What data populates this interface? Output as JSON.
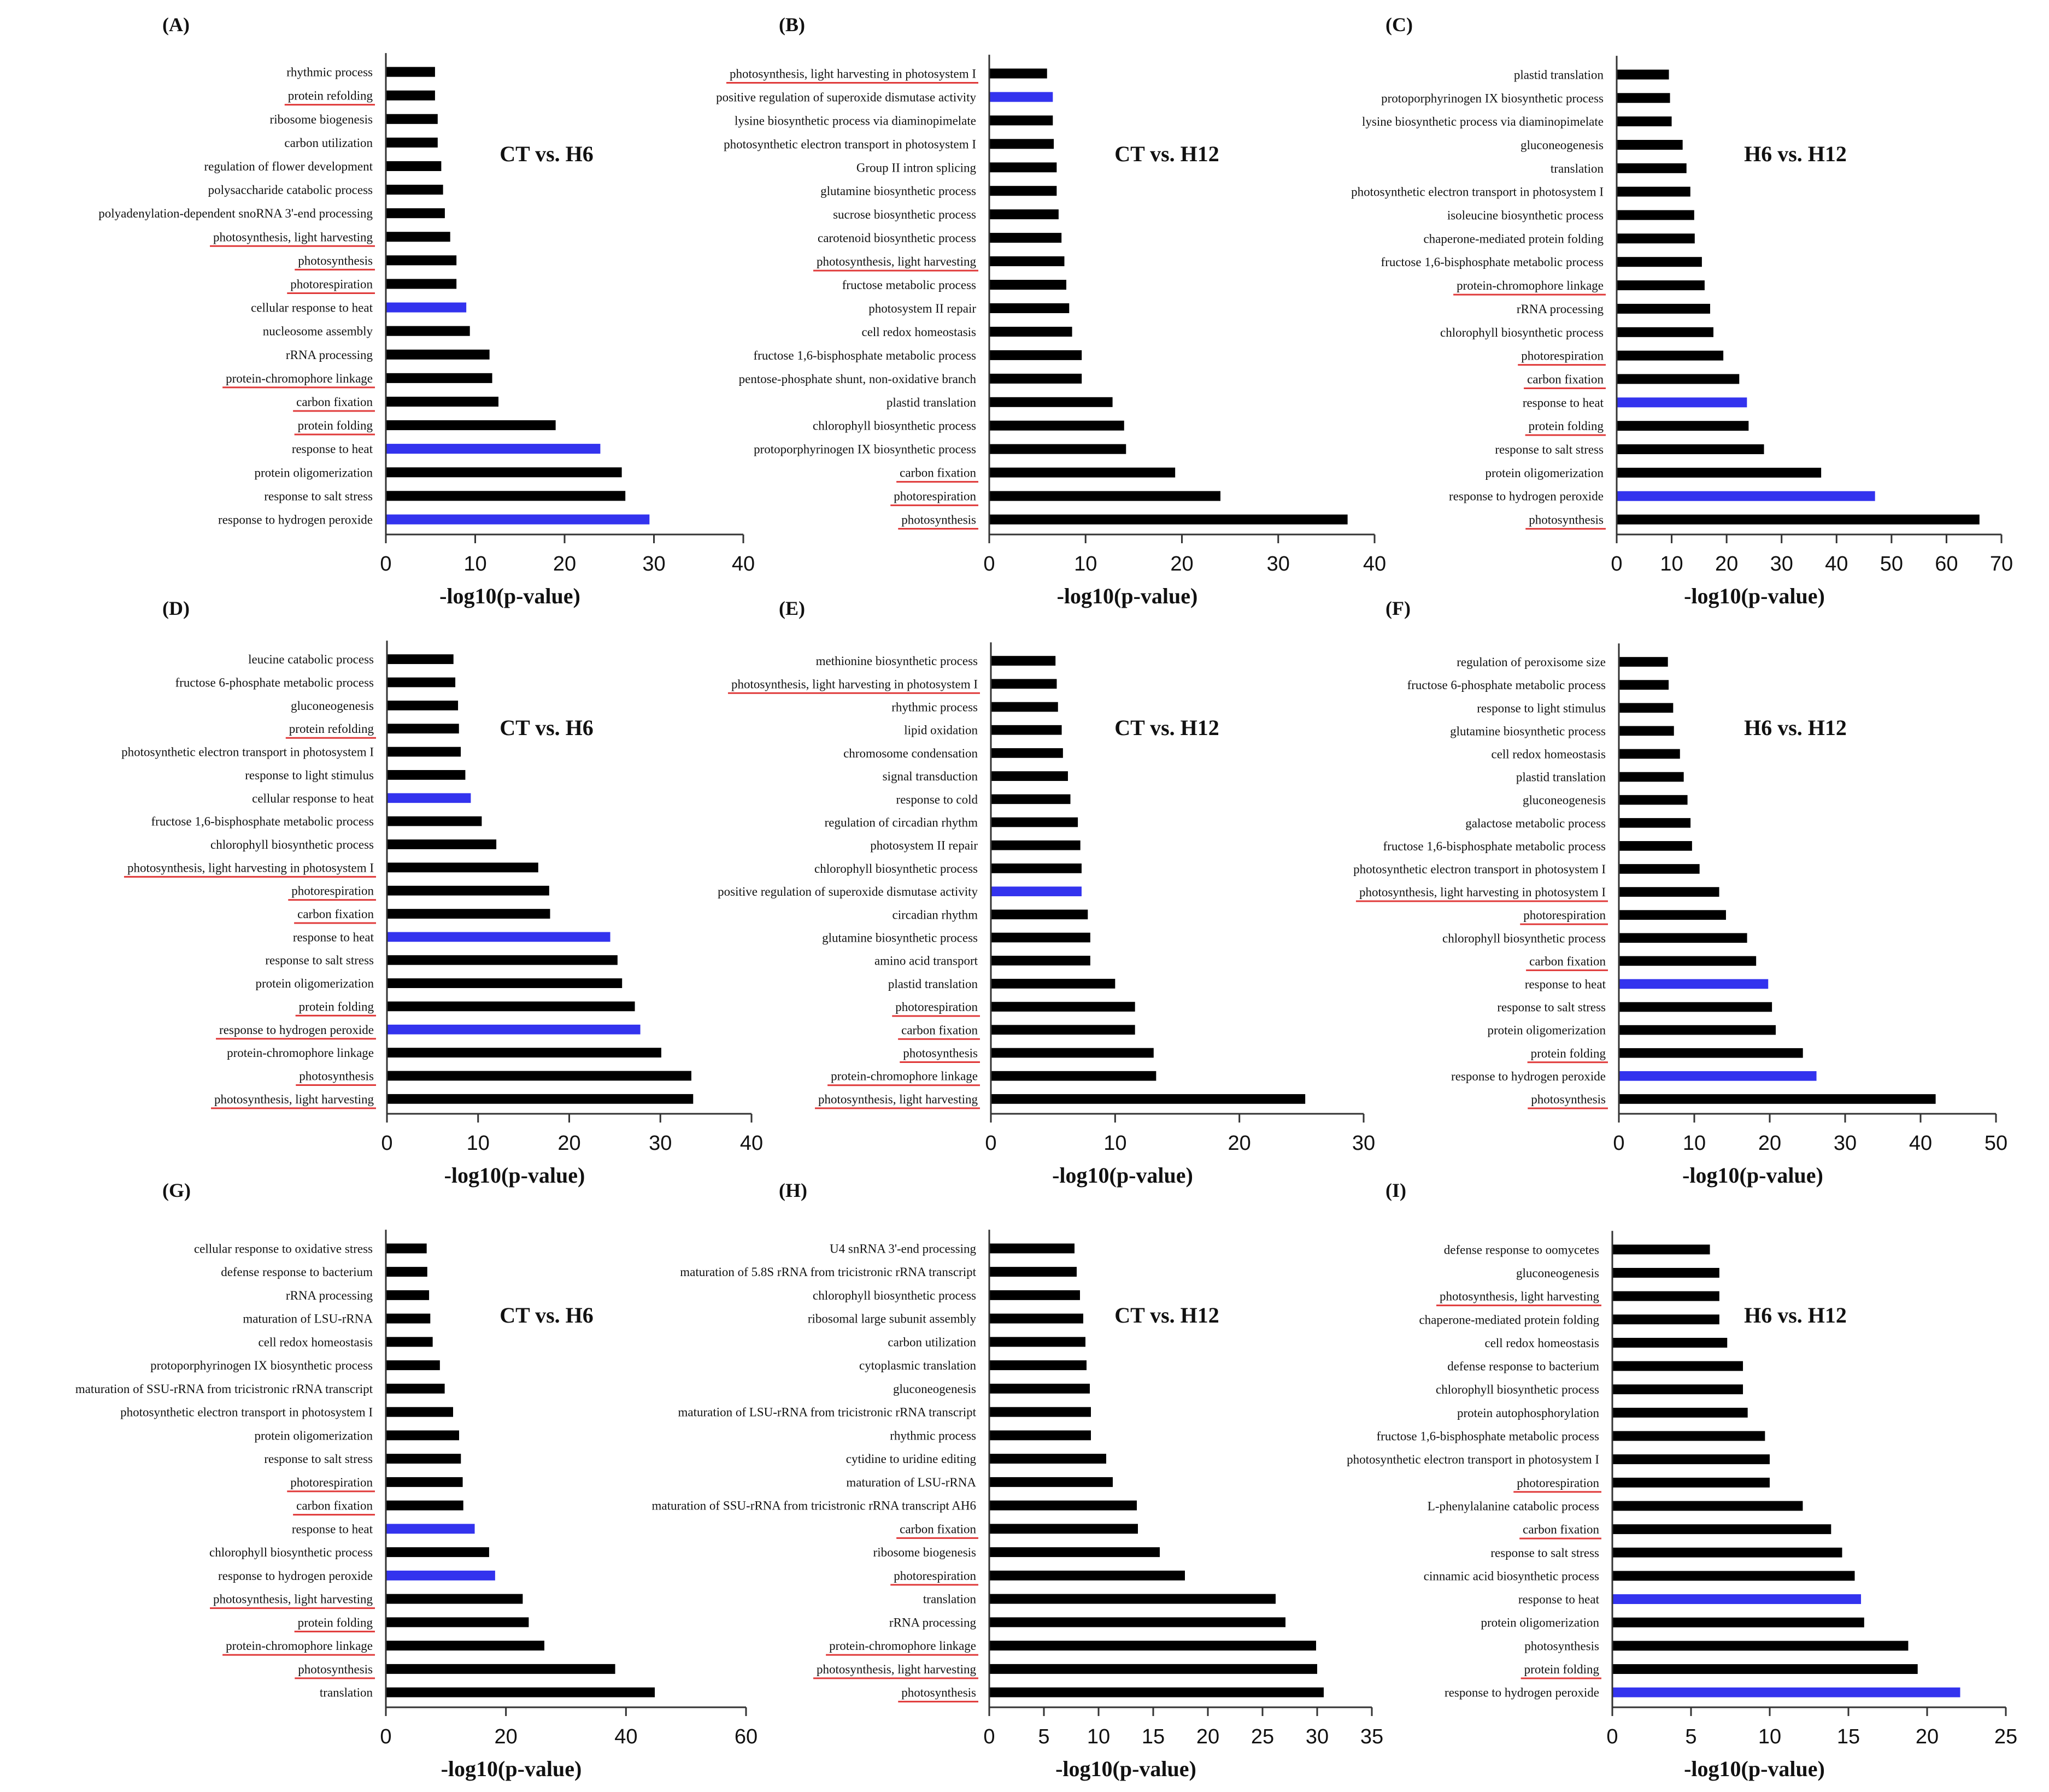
{
  "figure": {
    "colors": {
      "bar_default": "#000000",
      "bar_highlight": "#3333ee",
      "underline": "#e03a3a",
      "axis": "#333333"
    }
  },
  "chart_data": [
    {
      "type": "bar",
      "orientation": "horizontal",
      "panel": "(A)",
      "title": "CT vs. H6",
      "xlabel": "-log10(p-value)",
      "xlim": [
        0,
        40
      ],
      "xticks": [
        0,
        10,
        20,
        30,
        40
      ],
      "categories": [
        "rhythmic process",
        "protein refolding",
        "ribosome biogenesis",
        "carbon utilization",
        "regulation of flower development",
        "polysaccharide catabolic process",
        "polyadenylation-dependent snoRNA 3'-end processing",
        "photosynthesis, light harvesting",
        "photosynthesis",
        "photorespiration",
        "cellular response to heat",
        "nucleosome assembly",
        "rRNA processing",
        "protein-chromophore linkage",
        "carbon fixation",
        "protein folding",
        "response to heat",
        "protein oligomerization",
        "response to salt stress",
        "response to hydrogen peroxide"
      ],
      "values": [
        5.5,
        5.5,
        5.8,
        5.8,
        6.2,
        6.4,
        6.6,
        7.2,
        7.9,
        7.9,
        9.0,
        9.4,
        11.6,
        11.9,
        12.6,
        19.0,
        24.0,
        26.4,
        26.8,
        29.5
      ],
      "highlighted": [
        "cellular response to heat",
        "response to heat",
        "response to hydrogen peroxide"
      ],
      "underlined": [
        "protein refolding",
        "photosynthesis, light harvesting",
        "photosynthesis",
        "photorespiration",
        "protein-chromophore linkage",
        "carbon fixation",
        "protein folding"
      ]
    },
    {
      "type": "bar",
      "orientation": "horizontal",
      "panel": "(B)",
      "title": "CT vs. H12",
      "xlabel": "-log10(p-value)",
      "xlim": [
        0,
        40
      ],
      "xticks": [
        0,
        10,
        20,
        30,
        40
      ],
      "categories": [
        "photosynthesis, light harvesting in photosystem I",
        "positive regulation of superoxide dismutase activity",
        "lysine biosynthetic process via diaminopimelate",
        "photosynthetic electron transport in photosystem I",
        "Group II intron splicing",
        "glutamine biosynthetic process",
        "sucrose biosynthetic process",
        "carotenoid biosynthetic process",
        "photosynthesis, light harvesting",
        "fructose metabolic process",
        "photosystem II repair",
        "cell redox homeostasis",
        "fructose 1,6-bisphosphate metabolic process",
        "pentose-phosphate shunt, non-oxidative branch",
        "plastid translation",
        "chlorophyll biosynthetic process",
        "protoporphyrinogen IX biosynthetic process",
        "carbon fixation",
        "photorespiration",
        "photosynthesis"
      ],
      "values": [
        6.0,
        6.6,
        6.6,
        6.7,
        7.0,
        7.0,
        7.2,
        7.5,
        7.8,
        8.0,
        8.3,
        8.6,
        9.6,
        9.6,
        12.8,
        14.0,
        14.2,
        19.3,
        24.0,
        37.2
      ],
      "highlighted": [
        "positive regulation of superoxide dismutase activity"
      ],
      "underlined": [
        "photosynthesis, light harvesting in photosystem I",
        "photosynthesis, light harvesting",
        "carbon fixation",
        "photorespiration",
        "photosynthesis"
      ]
    },
    {
      "type": "bar",
      "orientation": "horizontal",
      "panel": "(C)",
      "title": "H6 vs. H12",
      "xlabel": "-log10(p-value)",
      "xlim": [
        0,
        70
      ],
      "xticks": [
        0,
        10,
        20,
        30,
        40,
        50,
        60,
        70
      ],
      "categories": [
        "plastid translation",
        "protoporphyrinogen IX biosynthetic process",
        "lysine biosynthetic process via diaminopimelate",
        "gluconeogenesis",
        "translation",
        "photosynthetic electron transport in photosystem I",
        "isoleucine biosynthetic process",
        "chaperone-mediated protein folding",
        "fructose 1,6-bisphosphate metabolic process",
        "protein-chromophore linkage",
        "rRNA processing",
        "chlorophyll biosynthetic process",
        "photorespiration",
        "carbon fixation",
        "response to heat",
        "protein folding",
        "response to salt stress",
        "protein oligomerization",
        "response to hydrogen peroxide",
        "photosynthesis"
      ],
      "values": [
        9.5,
        9.7,
        10.0,
        12.0,
        12.7,
        13.4,
        14.1,
        14.2,
        15.5,
        16.0,
        17.0,
        17.6,
        19.4,
        22.3,
        23.7,
        24.0,
        26.8,
        37.2,
        47.0,
        66.0
      ],
      "highlighted": [
        "response to heat",
        "response to hydrogen peroxide"
      ],
      "underlined": [
        "protein-chromophore linkage",
        "photorespiration",
        "carbon fixation",
        "protein folding",
        "photosynthesis"
      ]
    },
    {
      "type": "bar",
      "orientation": "horizontal",
      "panel": "(D)",
      "title": "CT vs. H6",
      "xlabel": "-log10(p-value)",
      "xlim": [
        0,
        40
      ],
      "xticks": [
        0,
        10,
        20,
        30,
        40
      ],
      "categories": [
        "leucine catabolic process",
        "fructose 6-phosphate metabolic process",
        "gluconeogenesis",
        "protein refolding",
        "photosynthetic electron transport in photosystem I",
        "response to light stimulus",
        "cellular response to heat",
        "fructose 1,6-bisphosphate metabolic process",
        "chlorophyll biosynthetic process",
        "photosynthesis, light harvesting in photosystem I",
        "photorespiration",
        "carbon fixation",
        "response to heat",
        "response to salt stress",
        "protein oligomerization",
        "protein folding",
        "response to hydrogen peroxide",
        "protein-chromophore linkage",
        "photosynthesis",
        "photosynthesis, light harvesting"
      ],
      "values": [
        7.3,
        7.5,
        7.8,
        7.9,
        8.1,
        8.6,
        9.2,
        10.4,
        12.0,
        16.6,
        17.8,
        17.9,
        24.5,
        25.3,
        25.8,
        27.2,
        27.8,
        30.1,
        33.4,
        33.6
      ],
      "highlighted": [
        "cellular response to heat",
        "response to heat",
        "response to hydrogen peroxide"
      ],
      "underlined": [
        "protein refolding",
        "photosynthesis, light harvesting in photosystem I",
        "photorespiration",
        "carbon fixation",
        "protein folding",
        "response to hydrogen peroxide",
        "photosynthesis",
        "photosynthesis, light harvesting"
      ]
    },
    {
      "type": "bar",
      "orientation": "horizontal",
      "panel": "(E)",
      "title": "CT vs. H12",
      "xlabel": "-log10(p-value)",
      "xlim": [
        0,
        30
      ],
      "xticks": [
        0,
        10,
        20,
        30
      ],
      "categories": [
        "methionine biosynthetic process",
        "photosynthesis, light harvesting in photosystem I",
        "rhythmic process",
        "lipid oxidation",
        "chromosome condensation",
        "signal transduction",
        "response to cold",
        "regulation of circadian rhythm",
        "photosystem II repair",
        "chlorophyll biosynthetic process",
        "positive regulation of superoxide dismutase activity",
        "circadian rhythm",
        "glutamine biosynthetic process",
        "amino acid transport",
        "plastid translation",
        "photorespiration",
        "carbon fixation",
        "photosynthesis",
        "protein-chromophore linkage",
        "photosynthesis, light harvesting"
      ],
      "values": [
        5.2,
        5.3,
        5.4,
        5.7,
        5.8,
        6.2,
        6.4,
        7.0,
        7.2,
        7.3,
        7.3,
        7.8,
        8.0,
        8.0,
        10.0,
        11.6,
        11.6,
        13.1,
        13.3,
        25.3
      ],
      "highlighted": [
        "positive regulation of superoxide dismutase activity"
      ],
      "underlined": [
        "photosynthesis, light harvesting in photosystem I",
        "photorespiration",
        "carbon fixation",
        "photosynthesis",
        "protein-chromophore linkage",
        "photosynthesis, light harvesting"
      ]
    },
    {
      "type": "bar",
      "orientation": "horizontal",
      "panel": "(F)",
      "title": "H6 vs. H12",
      "xlabel": "-log10(p-value)",
      "xlim": [
        0,
        50
      ],
      "xticks": [
        0,
        10,
        20,
        30,
        40,
        50
      ],
      "categories": [
        "regulation of peroxisome size",
        "fructose 6-phosphate metabolic process",
        "response to light stimulus",
        "glutamine biosynthetic process",
        "cell redox homeostasis",
        "plastid translation",
        "gluconeogenesis",
        "galactose metabolic process",
        "fructose 1,6-bisphosphate metabolic process",
        "photosynthetic electron transport in photosystem I",
        "photosynthesis, light harvesting in photosystem I",
        "photorespiration",
        "chlorophyll biosynthetic process",
        "carbon fixation",
        "response to heat",
        "response to salt stress",
        "protein oligomerization",
        "protein folding",
        "response to hydrogen peroxide",
        "photosynthesis"
      ],
      "values": [
        6.5,
        6.6,
        7.2,
        7.3,
        8.1,
        8.6,
        9.1,
        9.5,
        9.7,
        10.7,
        13.3,
        14.2,
        17.0,
        18.2,
        19.8,
        20.3,
        20.8,
        24.4,
        26.2,
        42.0
      ],
      "highlighted": [
        "response to heat",
        "response to hydrogen peroxide"
      ],
      "underlined": [
        "photosynthesis, light harvesting in photosystem I",
        "photorespiration",
        "carbon fixation",
        "protein folding",
        "photosynthesis"
      ]
    },
    {
      "type": "bar",
      "orientation": "horizontal",
      "panel": "(G)",
      "title": "CT vs. H6",
      "xlabel": "-log10(p-value)",
      "xlim": [
        0,
        60
      ],
      "xticks": [
        0,
        20,
        40,
        60
      ],
      "categories": [
        "cellular response to oxidative stress",
        "defense response to bacterium",
        "rRNA processing",
        "maturation of LSU-rRNA",
        "cell redox homeostasis",
        "protoporphyrinogen IX biosynthetic process",
        "maturation of SSU-rRNA from tricistronic rRNA transcript",
        "photosynthetic electron transport in photosystem I",
        "protein oligomerization",
        "response to salt stress",
        "photorespiration",
        "carbon fixation",
        "response to heat",
        "chlorophyll biosynthetic process",
        "response to hydrogen peroxide",
        "photosynthesis, light harvesting",
        "protein folding",
        "protein-chromophore linkage",
        "photosynthesis",
        "translation"
      ],
      "values": [
        6.8,
        6.9,
        7.2,
        7.4,
        7.8,
        9.0,
        9.8,
        11.2,
        12.2,
        12.5,
        12.8,
        12.9,
        14.8,
        17.2,
        18.2,
        22.8,
        23.8,
        26.4,
        38.2,
        44.8
      ],
      "highlighted": [
        "response to heat",
        "response to hydrogen peroxide"
      ],
      "underlined": [
        "photorespiration",
        "carbon fixation",
        "photosynthesis, light harvesting",
        "protein folding",
        "protein-chromophore linkage",
        "photosynthesis"
      ]
    },
    {
      "type": "bar",
      "orientation": "horizontal",
      "panel": "(H)",
      "title": "CT vs. H12",
      "xlabel": "-log10(p-value)",
      "xlim": [
        0,
        35
      ],
      "xticks": [
        0,
        5,
        10,
        15,
        20,
        25,
        30,
        35
      ],
      "categories": [
        "U4 snRNA 3'-end processing",
        "maturation of 5.8S rRNA from tricistronic rRNA transcript",
        "chlorophyll biosynthetic process",
        "ribosomal large subunit assembly",
        "carbon utilization",
        "cytoplasmic translation",
        "gluconeogenesis",
        "maturation of LSU-rRNA from tricistronic rRNA transcript",
        "rhythmic process",
        "cytidine to uridine editing",
        "maturation of LSU-rRNA",
        "maturation of SSU-rRNA from tricistronic rRNA transcript AH6",
        "carbon fixation",
        "ribosome biogenesis",
        "photorespiration",
        "translation",
        "rRNA processing",
        "protein-chromophore linkage",
        "photosynthesis, light harvesting",
        "photosynthesis"
      ],
      "values": [
        7.8,
        8.0,
        8.3,
        8.6,
        8.8,
        8.9,
        9.2,
        9.3,
        9.3,
        10.7,
        11.3,
        13.5,
        13.6,
        15.6,
        17.9,
        26.2,
        27.1,
        29.9,
        30.0,
        30.6
      ],
      "highlighted": [],
      "underlined": [
        "carbon fixation",
        "photorespiration",
        "protein-chromophore linkage",
        "photosynthesis, light harvesting",
        "photosynthesis"
      ]
    },
    {
      "type": "bar",
      "orientation": "horizontal",
      "panel": "(I)",
      "title": "H6 vs. H12",
      "xlabel": "-log10(p-value)",
      "xlim": [
        0,
        25
      ],
      "xticks": [
        0,
        5,
        10,
        15,
        20,
        25
      ],
      "categories": [
        "defense response to oomycetes",
        "gluconeogenesis",
        "photosynthesis, light harvesting",
        "chaperone-mediated protein folding",
        "cell redox homeostasis",
        "defense response to bacterium",
        "chlorophyll biosynthetic process",
        "protein autophosphorylation",
        "fructose 1,6-bisphosphate metabolic process",
        "photosynthetic electron transport in photosystem I",
        "photorespiration",
        "L-phenylalanine catabolic process",
        "carbon fixation",
        "response to salt stress",
        "cinnamic acid biosynthetic process",
        "response to heat",
        "protein oligomerization",
        "photosynthesis",
        "protein folding",
        "response to hydrogen peroxide"
      ],
      "values": [
        6.2,
        6.8,
        6.8,
        6.8,
        7.3,
        8.3,
        8.3,
        8.6,
        9.7,
        10.0,
        10.0,
        12.1,
        13.9,
        14.6,
        15.4,
        15.8,
        16.0,
        18.8,
        19.4,
        22.1
      ],
      "highlighted": [
        "response to heat",
        "response to hydrogen peroxide"
      ],
      "underlined": [
        "photosynthesis, light harvesting",
        "photorespiration",
        "carbon fixation",
        "protein folding"
      ]
    }
  ]
}
